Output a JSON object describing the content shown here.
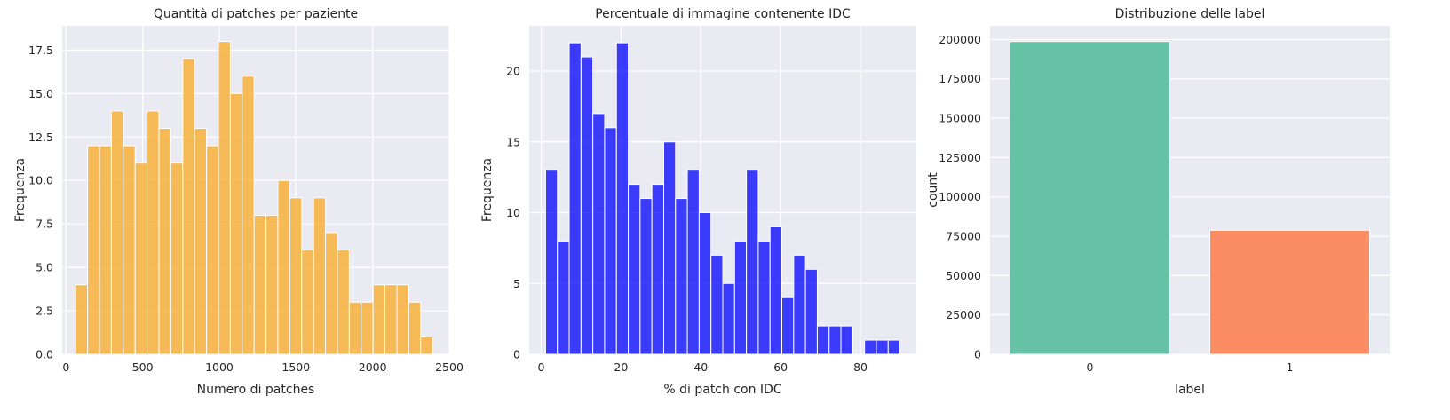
{
  "chart_data": [
    {
      "type": "bar",
      "subtype": "histogram",
      "title": "Quantità di patches per paziente",
      "xlabel": "Numero di patches",
      "ylabel": "Frequenza",
      "xlim": [
        -25,
        2500
      ],
      "ylim": [
        0,
        18.9
      ],
      "xticks": [
        0,
        500,
        1000,
        1500,
        2000,
        2500
      ],
      "xtick_labels": [
        "0",
        "500",
        "1000",
        "1500",
        "2000",
        "2500"
      ],
      "yticks": [
        0,
        2.5,
        5,
        7.5,
        10,
        12.5,
        15,
        17.5
      ],
      "ytick_labels": [
        "0.0",
        "2.5",
        "5.0",
        "7.5",
        "10.0",
        "12.5",
        "15.0",
        "17.5"
      ],
      "bin_start": 63,
      "bin_width": 77.6,
      "values": [
        4,
        12,
        12,
        14,
        12,
        11,
        14,
        13,
        11,
        17,
        13,
        12,
        18,
        15,
        16,
        8,
        8,
        10,
        9,
        6,
        9,
        7,
        6,
        3,
        3,
        4,
        4,
        4,
        3,
        1
      ],
      "color": "#f8a822",
      "grid": true
    },
    {
      "type": "bar",
      "subtype": "histogram",
      "title": "Percentuale di immagine contenente IDC",
      "xlabel": "% di patch con IDC",
      "ylabel": "Frequenza",
      "xlim": [
        -3,
        94
      ],
      "ylim": [
        0,
        23.2
      ],
      "xticks": [
        0,
        20,
        40,
        60,
        80
      ],
      "xtick_labels": [
        "0",
        "20",
        "40",
        "60",
        "80"
      ],
      "yticks": [
        0,
        5,
        10,
        15,
        20
      ],
      "ytick_labels": [
        "0",
        "5",
        "10",
        "15",
        "20"
      ],
      "bin_start": 1.1,
      "bin_width": 2.96,
      "values": [
        13,
        8,
        22,
        21,
        17,
        16,
        22,
        12,
        11,
        12,
        15,
        11,
        13,
        10,
        7,
        5,
        8,
        13,
        8,
        9,
        4,
        7,
        6,
        2,
        2,
        2,
        0,
        1,
        1,
        1
      ],
      "color": "#0000ff",
      "grid": true
    },
    {
      "type": "bar",
      "title": "Distribuzione delle label",
      "xlabel": "label",
      "ylabel": "count",
      "categories": [
        "0",
        "1"
      ],
      "values": [
        198738,
        78786
      ],
      "colors": [
        "#66c2a5",
        "#fc8d62"
      ],
      "ylim": [
        0,
        208700
      ],
      "yticks": [
        0,
        25000,
        50000,
        75000,
        100000,
        125000,
        150000,
        175000,
        200000
      ],
      "ytick_labels": [
        "0",
        "25000",
        "50000",
        "75000",
        "100000",
        "125000",
        "150000",
        "175000",
        "200000"
      ],
      "grid": true
    }
  ],
  "style": {
    "axes_bg": "#eaeaf2",
    "grid_color": "#ffffff",
    "text_color": "#262626"
  }
}
